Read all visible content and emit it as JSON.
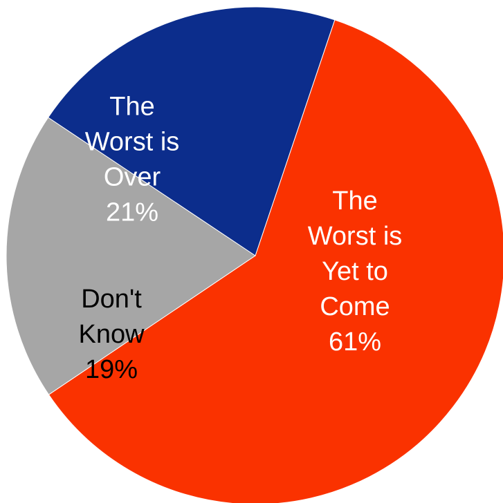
{
  "chart_data": {
    "type": "pie",
    "title": "",
    "slices": [
      {
        "label": "The Worst is Yet to Come",
        "lines": [
          "The",
          "Worst is",
          "Yet to",
          "Come",
          "61%"
        ],
        "value": 61,
        "color": "#fa3200",
        "text_color": "#ffffff"
      },
      {
        "label": "Don't Know",
        "lines": [
          "Don't",
          "Know",
          "19%"
        ],
        "value": 19,
        "color": "#a6a6a6",
        "text_color": "#000000"
      },
      {
        "label": "The Worst is Over",
        "lines": [
          "The",
          "Worst is",
          "Over",
          "21%"
        ],
        "value": 21,
        "color": "#0c2d8c",
        "text_color": "#ffffff"
      }
    ],
    "start_angle_deg": 18.6,
    "direction": "clockwise",
    "edge_color": "#ffffff",
    "legend": "none"
  }
}
